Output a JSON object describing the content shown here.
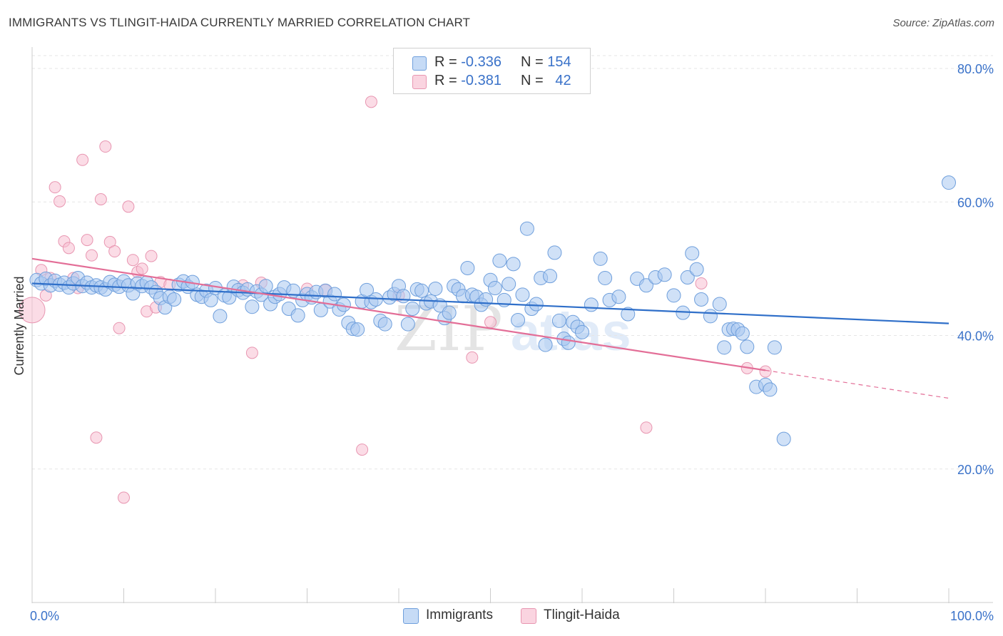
{
  "header": {
    "title": "IMMIGRANTS VS TLINGIT-HAIDA CURRENTLY MARRIED CORRELATION CHART",
    "source": "Source: ZipAtlas.com"
  },
  "legend": {
    "rows": [
      {
        "r_label": "R =",
        "r_value": "-0.336",
        "n_label": "N =",
        "n_value": "154"
      },
      {
        "r_label": "R =",
        "r_value": "-0.381",
        "n_label": "N =",
        "n_value": "42"
      }
    ]
  },
  "bottom_legend": [
    "Immigrants",
    "Tlingit-Haida"
  ],
  "colors": {
    "blue_fill": "#a9c8f0",
    "blue_stroke": "#6f9fdc",
    "blue_line": "#2f6fc9",
    "pink_fill": "#f7c0d1",
    "pink_stroke": "#e896b1",
    "pink_line": "#e36e97",
    "axis_label": "#3a72c9"
  },
  "chart_data": {
    "type": "scatter",
    "title": "IMMIGRANTS VS TLINGIT-HAIDA CURRENTLY MARRIED CORRELATION CHART",
    "xlabel": "",
    "ylabel": "Currently Married",
    "xlim": [
      0,
      100
    ],
    "ylim": [
      0,
      80
    ],
    "x_tick_labels": [
      "0.0%",
      "100.0%"
    ],
    "y_tick_labels": [
      "20.0%",
      "40.0%",
      "60.0%",
      "80.0%"
    ],
    "y_ticks": [
      20,
      40,
      60,
      80
    ],
    "grid": true,
    "legend_position": "top-center",
    "watermark": "ZIPatlas",
    "series": [
      {
        "name": "Immigrants",
        "color": "#6f9fdc",
        "r": -0.336,
        "n": 154,
        "trend": {
          "x": [
            0,
            100
          ],
          "y": [
            47.8,
            41.8
          ],
          "solid_to": 100
        },
        "points": [
          [
            0.5,
            48.3
          ],
          [
            1,
            47.8
          ],
          [
            1.5,
            48.5
          ],
          [
            2,
            47.5
          ],
          [
            2.5,
            48.2
          ],
          [
            3,
            47.6
          ],
          [
            3.5,
            47.9
          ],
          [
            4,
            47.2
          ],
          [
            4.5,
            47.8
          ],
          [
            5,
            48.6
          ],
          [
            5.5,
            47.4
          ],
          [
            6,
            47.9
          ],
          [
            6.5,
            47.2
          ],
          [
            7,
            47.5
          ],
          [
            7.5,
            47.2
          ],
          [
            8,
            46.9
          ],
          [
            8.5,
            48.0
          ],
          [
            9,
            47.6
          ],
          [
            9.5,
            47.3
          ],
          [
            10,
            48.1
          ],
          [
            10.5,
            47.5
          ],
          [
            11,
            46.3
          ],
          [
            11.5,
            47.8
          ],
          [
            12,
            47.4
          ],
          [
            12.5,
            47.9
          ],
          [
            13,
            47.2
          ],
          [
            13.5,
            46.5
          ],
          [
            14,
            45.6
          ],
          [
            14.5,
            44.2
          ],
          [
            15,
            45.8
          ],
          [
            15.5,
            45.4
          ],
          [
            16,
            47.6
          ],
          [
            16.5,
            48.1
          ],
          [
            17,
            47.3
          ],
          [
            17.5,
            48.0
          ],
          [
            18,
            46.1
          ],
          [
            18.5,
            45.8
          ],
          [
            19,
            46.7
          ],
          [
            19.5,
            45.3
          ],
          [
            20,
            47.1
          ],
          [
            20.5,
            42.9
          ],
          [
            21,
            46.0
          ],
          [
            21.5,
            45.7
          ],
          [
            22,
            47.3
          ],
          [
            22.5,
            46.8
          ],
          [
            23,
            46.4
          ],
          [
            23.5,
            46.9
          ],
          [
            24,
            44.3
          ],
          [
            24.5,
            46.6
          ],
          [
            25,
            46.1
          ],
          [
            25.5,
            47.4
          ],
          [
            26,
            44.7
          ],
          [
            26.5,
            45.8
          ],
          [
            27,
            46.2
          ],
          [
            27.5,
            47.2
          ],
          [
            28,
            44.0
          ],
          [
            28.5,
            46.7
          ],
          [
            29,
            43.0
          ],
          [
            29.5,
            45.3
          ],
          [
            30,
            46.2
          ],
          [
            30.5,
            45.7
          ],
          [
            31,
            46.5
          ],
          [
            31.5,
            43.8
          ],
          [
            32,
            46.7
          ],
          [
            32.5,
            45.1
          ],
          [
            33,
            46.2
          ],
          [
            33.5,
            43.9
          ],
          [
            34,
            44.6
          ],
          [
            34.5,
            41.9
          ],
          [
            35,
            41.0
          ],
          [
            35.5,
            40.9
          ],
          [
            36,
            45.1
          ],
          [
            36.5,
            46.8
          ],
          [
            37,
            45.0
          ],
          [
            37.5,
            45.4
          ],
          [
            38,
            42.2
          ],
          [
            38.5,
            41.7
          ],
          [
            39,
            45.7
          ],
          [
            39.5,
            46.2
          ],
          [
            40,
            47.4
          ],
          [
            40.5,
            45.9
          ],
          [
            41,
            41.7
          ],
          [
            41.5,
            44.0
          ],
          [
            42,
            46.9
          ],
          [
            42.5,
            46.7
          ],
          [
            43,
            44.8
          ],
          [
            43.5,
            45.1
          ],
          [
            44,
            47.0
          ],
          [
            44.5,
            44.5
          ],
          [
            45,
            42.6
          ],
          [
            45.5,
            43.4
          ],
          [
            46,
            47.4
          ],
          [
            46.5,
            46.9
          ],
          [
            47,
            45.9
          ],
          [
            47.5,
            50.1
          ],
          [
            48,
            46.1
          ],
          [
            48.5,
            45.8
          ],
          [
            49,
            44.6
          ],
          [
            49.5,
            45.4
          ],
          [
            50,
            48.3
          ],
          [
            50.5,
            47.1
          ],
          [
            51,
            51.2
          ],
          [
            51.5,
            45.3
          ],
          [
            52,
            47.7
          ],
          [
            52.5,
            50.7
          ],
          [
            53,
            42.3
          ],
          [
            53.5,
            46.1
          ],
          [
            54,
            56.0
          ],
          [
            54.5,
            44.0
          ],
          [
            55,
            44.7
          ],
          [
            55.5,
            48.6
          ],
          [
            56,
            38.6
          ],
          [
            56.5,
            48.9
          ],
          [
            57,
            52.4
          ],
          [
            57.5,
            42.2
          ],
          [
            58,
            39.5
          ],
          [
            58.5,
            38.9
          ],
          [
            59,
            42.0
          ],
          [
            59.5,
            41.3
          ],
          [
            60,
            40.5
          ],
          [
            61,
            44.6
          ],
          [
            62,
            51.5
          ],
          [
            62.5,
            48.6
          ],
          [
            63,
            45.3
          ],
          [
            64,
            45.8
          ],
          [
            65,
            43.2
          ],
          [
            66,
            48.5
          ],
          [
            67,
            47.5
          ],
          [
            68,
            48.7
          ],
          [
            69,
            49.1
          ],
          [
            70,
            46.0
          ],
          [
            71,
            43.4
          ],
          [
            71.5,
            48.7
          ],
          [
            72,
            52.3
          ],
          [
            72.5,
            49.9
          ],
          [
            73,
            45.4
          ],
          [
            74,
            42.9
          ],
          [
            75,
            44.7
          ],
          [
            75.5,
            38.2
          ],
          [
            76,
            40.9
          ],
          [
            76.5,
            41.0
          ],
          [
            77,
            40.9
          ],
          [
            77.5,
            40.3
          ],
          [
            78,
            38.3
          ],
          [
            79,
            32.3
          ],
          [
            80,
            32.6
          ],
          [
            80.5,
            31.9
          ],
          [
            81,
            38.2
          ],
          [
            82,
            24.5
          ],
          [
            100,
            62.9
          ]
        ]
      },
      {
        "name": "Tlingit-Haida",
        "color": "#e896b1",
        "r": -0.381,
        "n": 42,
        "trend": {
          "x": [
            0,
            100
          ],
          "y": [
            51.5,
            30.6
          ],
          "solid_to": 80
        },
        "points": [
          [
            0,
            43.8
          ],
          [
            1,
            49.8
          ],
          [
            1.5,
            46.0
          ],
          [
            2,
            48.6
          ],
          [
            2.5,
            62.2
          ],
          [
            3,
            60.1
          ],
          [
            3.5,
            54.1
          ],
          [
            4,
            53.1
          ],
          [
            4.5,
            48.6
          ],
          [
            5,
            47.1
          ],
          [
            5.5,
            66.3
          ],
          [
            6,
            54.3
          ],
          [
            6.5,
            52.0
          ],
          [
            7,
            24.7
          ],
          [
            7.5,
            60.4
          ],
          [
            8,
            68.3
          ],
          [
            8.5,
            54.0
          ],
          [
            9,
            52.6
          ],
          [
            9.5,
            41.1
          ],
          [
            10,
            15.7
          ],
          [
            10.5,
            59.3
          ],
          [
            11,
            51.3
          ],
          [
            11.5,
            49.5
          ],
          [
            12,
            50.0
          ],
          [
            12.5,
            43.6
          ],
          [
            13,
            51.9
          ],
          [
            13.5,
            44.2
          ],
          [
            14,
            48.0
          ],
          [
            15,
            47.6
          ],
          [
            23,
            47.5
          ],
          [
            24,
            37.4
          ],
          [
            25,
            47.9
          ],
          [
            30,
            47.0
          ],
          [
            32,
            46.8
          ],
          [
            36,
            22.9
          ],
          [
            37,
            75.0
          ],
          [
            40,
            46.0
          ],
          [
            48,
            36.7
          ],
          [
            50,
            42.0
          ],
          [
            67,
            26.2
          ],
          [
            73,
            47.8
          ],
          [
            78,
            35.1
          ],
          [
            80,
            34.6
          ]
        ]
      }
    ]
  }
}
